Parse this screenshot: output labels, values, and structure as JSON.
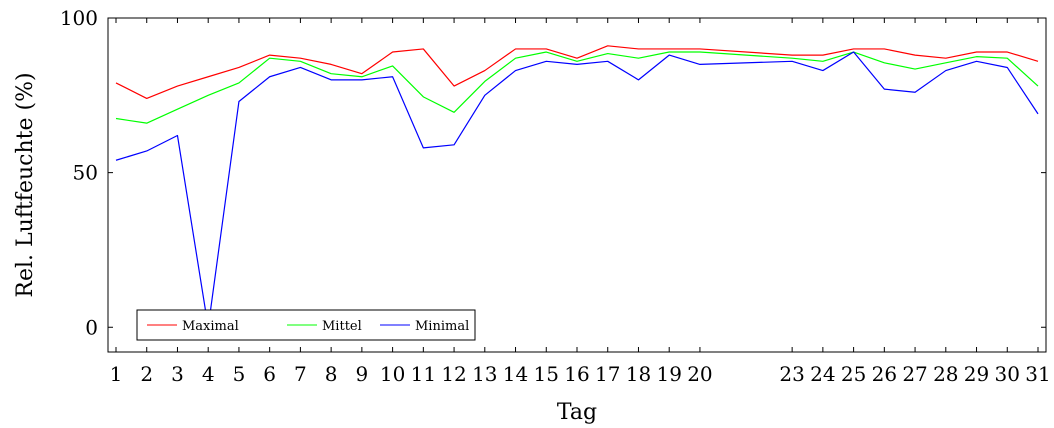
{
  "chart_data": {
    "type": "line",
    "xlabel": "Tag",
    "ylabel": "Rel. Luftfeuchte (%)",
    "xlim": [
      1,
      31
    ],
    "ylim": [
      -8,
      100
    ],
    "yticks": [
      0,
      50,
      100
    ],
    "x": [
      1,
      2,
      3,
      4,
      5,
      6,
      7,
      8,
      9,
      10,
      11,
      12,
      13,
      14,
      15,
      16,
      17,
      18,
      19,
      20,
      23,
      24,
      25,
      26,
      27,
      28,
      29,
      30,
      31
    ],
    "xtick_labels": [
      "1",
      "2",
      "3",
      "4",
      "5",
      "6",
      "7",
      "8",
      "9",
      "10",
      "11",
      "12",
      "13",
      "14",
      "15",
      "16",
      "17",
      "18",
      "19",
      "20",
      "23",
      "24",
      "25",
      "26",
      "27",
      "28",
      "29",
      "30",
      "31"
    ],
    "legend_position": "bottom-left",
    "series": [
      {
        "name": "Maximal",
        "color": "#ff0000",
        "values": [
          79,
          74,
          78,
          81,
          84,
          88,
          87,
          85,
          82,
          89,
          90,
          78,
          83,
          90,
          90,
          87,
          91,
          90,
          90,
          90,
          88,
          88,
          90,
          90,
          88,
          87,
          89,
          89,
          86
        ]
      },
      {
        "name": "Mittel",
        "color": "#00ff00",
        "values": [
          67.5,
          66,
          70.5,
          75,
          79,
          87,
          86,
          82,
          81,
          84.5,
          74.5,
          69.5,
          79.5,
          87,
          89,
          86,
          88.5,
          87,
          89,
          89,
          87,
          86,
          89,
          85.5,
          83.5,
          85.5,
          87.5,
          87,
          78
        ]
      },
      {
        "name": "Minimal",
        "color": "#0000ff",
        "values": [
          54,
          57,
          62,
          0,
          73,
          81,
          84,
          80,
          80,
          81,
          58,
          59,
          75,
          83,
          86,
          85,
          86,
          80,
          88,
          85,
          86,
          83,
          89,
          77,
          76,
          83,
          86,
          84,
          69
        ]
      }
    ]
  }
}
